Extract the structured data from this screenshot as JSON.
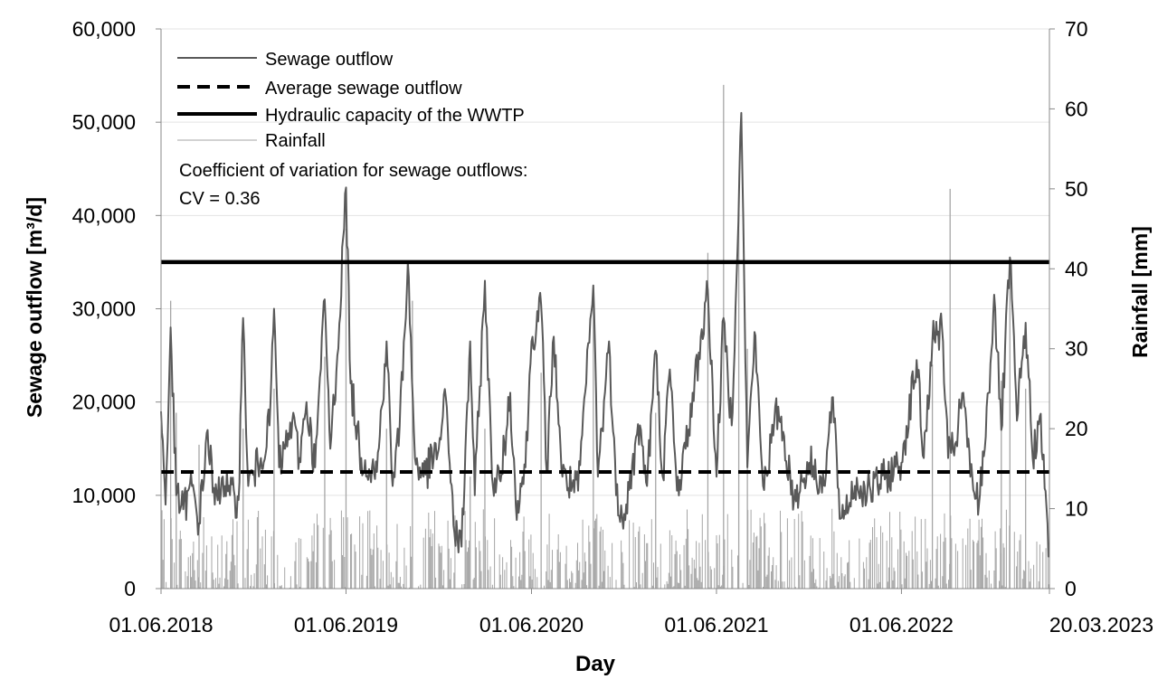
{
  "chart_data": {
    "type": "line",
    "xlabel": "Day",
    "ylabel_left": "Sewage outflow [m³/d]",
    "ylabel_right": "Rainfall [mm]",
    "x_ticks": [
      "01.06.2018",
      "01.06.2019",
      "01.06.2020",
      "01.06.2021",
      "01.06.2022",
      "20.03.2023"
    ],
    "x_range": [
      "01.06.2018",
      "20.03.2023"
    ],
    "y_left_ticks": [
      "0",
      "10,000",
      "20,000",
      "30,000",
      "40,000",
      "50,000",
      "60,000"
    ],
    "y_left_range": [
      0,
      60000
    ],
    "y_right_ticks": [
      "0",
      "10",
      "20",
      "30",
      "40",
      "50",
      "60",
      "70"
    ],
    "y_right_range": [
      0,
      70
    ],
    "legend_position": "top-left",
    "grid": "horizontal",
    "series": [
      {
        "name": "Sewage outflow",
        "axis": "left",
        "style": "solid-thin",
        "color": "#595959",
        "points": [
          [
            "01.06.2018",
            19000
          ],
          [
            "10.06.2018",
            9000
          ],
          [
            "20.06.2018",
            28000
          ],
          [
            "01.07.2018",
            10000
          ],
          [
            "15.07.2018",
            8500
          ],
          [
            "01.08.2018",
            11000
          ],
          [
            "15.08.2018",
            7000
          ],
          [
            "01.09.2018",
            17000
          ],
          [
            "15.09.2018",
            9000
          ],
          [
            "01.10.2018",
            12000
          ],
          [
            "15.10.2018",
            10000
          ],
          [
            "01.11.2018",
            9500
          ],
          [
            "10.11.2018",
            29000
          ],
          [
            "20.11.2018",
            11000
          ],
          [
            "15.12.2018",
            14000
          ],
          [
            "01.01.2019",
            17500
          ],
          [
            "10.01.2019",
            30000
          ],
          [
            "20.01.2019",
            13000
          ],
          [
            "01.02.2019",
            15000
          ],
          [
            "15.02.2019",
            18000
          ],
          [
            "01.03.2019",
            14000
          ],
          [
            "15.03.2019",
            20000
          ],
          [
            "01.04.2019",
            13000
          ],
          [
            "20.04.2019",
            31000
          ],
          [
            "01.05.2019",
            15000
          ],
          [
            "15.05.2019",
            25000
          ],
          [
            "01.06.2019",
            43000
          ],
          [
            "10.06.2019",
            22000
          ],
          [
            "01.07.2019",
            14000
          ],
          [
            "01.08.2019",
            12500
          ],
          [
            "20.08.2019",
            26500
          ],
          [
            "01.09.2019",
            11000
          ],
          [
            "15.09.2019",
            17500
          ],
          [
            "01.10.2019",
            35000
          ],
          [
            "15.10.2019",
            14000
          ],
          [
            "01.11.2019",
            12000
          ],
          [
            "01.12.2019",
            15000
          ],
          [
            "15.12.2019",
            20500
          ],
          [
            "01.01.2020",
            6000
          ],
          [
            "15.01.2020",
            4500
          ],
          [
            "01.02.2020",
            26500
          ],
          [
            "10.02.2020",
            10000
          ],
          [
            "01.03.2020",
            33000
          ],
          [
            "15.03.2020",
            12000
          ],
          [
            "01.04.2020",
            11500
          ],
          [
            "20.04.2020",
            21000
          ],
          [
            "01.05.2020",
            9000
          ],
          [
            "20.05.2020",
            13000
          ],
          [
            "01.06.2020",
            26500
          ],
          [
            "20.06.2020",
            30500
          ],
          [
            "01.07.2020",
            12500
          ],
          [
            "15.07.2020",
            27000
          ],
          [
            "01.08.2020",
            12000
          ],
          [
            "01.09.2020",
            10500
          ],
          [
            "01.10.2020",
            32500
          ],
          [
            "10.10.2020",
            12000
          ],
          [
            "01.11.2020",
            26500
          ],
          [
            "15.11.2020",
            10000
          ],
          [
            "01.12.2020",
            8000
          ],
          [
            "01.01.2021",
            17500
          ],
          [
            "15.01.2021",
            11000
          ],
          [
            "01.02.2021",
            25500
          ],
          [
            "15.02.2021",
            12000
          ],
          [
            "01.03.2021",
            23500
          ],
          [
            "15.03.2021",
            10500
          ],
          [
            "01.04.2021",
            15000
          ],
          [
            "15.05.2021",
            32000
          ],
          [
            "01.06.2021",
            12000
          ],
          [
            "15.06.2021",
            29000
          ],
          [
            "01.07.2021",
            17500
          ],
          [
            "20.07.2021",
            51000
          ],
          [
            "01.08.2021",
            13000
          ],
          [
            "15.08.2021",
            27500
          ],
          [
            "01.09.2021",
            11000
          ],
          [
            "01.10.2021",
            19500
          ],
          [
            "01.11.2021",
            9500
          ],
          [
            "01.12.2021",
            13500
          ],
          [
            "01.01.2022",
            11000
          ],
          [
            "15.01.2022",
            20500
          ],
          [
            "01.02.2022",
            7500
          ],
          [
            "01.03.2022",
            11000
          ],
          [
            "01.04.2022",
            10500
          ],
          [
            "01.05.2022",
            12000
          ],
          [
            "01.06.2022",
            13500
          ],
          [
            "01.07.2022",
            24500
          ],
          [
            "15.07.2022",
            14000
          ],
          [
            "01.08.2022",
            26500
          ],
          [
            "20.08.2022",
            28000
          ],
          [
            "01.09.2022",
            14000
          ],
          [
            "15.09.2022",
            15500
          ],
          [
            "01.10.2022",
            21000
          ],
          [
            "15.10.2022",
            12000
          ],
          [
            "01.11.2022",
            9000
          ],
          [
            "20.11.2022",
            21000
          ],
          [
            "01.12.2022",
            31500
          ],
          [
            "15.12.2022",
            17000
          ],
          [
            "01.01.2023",
            35500
          ],
          [
            "15.01.2023",
            18000
          ],
          [
            "01.02.2023",
            28500
          ],
          [
            "15.02.2023",
            14000
          ],
          [
            "01.03.2023",
            18500
          ],
          [
            "20.03.2023",
            3500
          ]
        ]
      },
      {
        "name": "Average sewage outflow",
        "axis": "left",
        "style": "dashed",
        "color": "#000000",
        "value": 12500
      },
      {
        "name": "Hydraulic capacity of the WWTP",
        "axis": "left",
        "style": "solid-thick",
        "color": "#000000",
        "value": 35000
      },
      {
        "name": "Rainfall",
        "axis": "right",
        "style": "solid-thin",
        "color": "#a6a6a6",
        "peaks": [
          [
            "20.06.2018",
            36
          ],
          [
            "01.07.2018",
            22
          ],
          [
            "15.08.2018",
            18
          ],
          [
            "10.11.2018",
            20
          ],
          [
            "10.01.2019",
            25
          ],
          [
            "20.04.2019",
            29
          ],
          [
            "01.06.2019",
            45
          ],
          [
            "20.08.2019",
            20
          ],
          [
            "10.10.2019",
            36
          ],
          [
            "01.02.2020",
            14
          ],
          [
            "01.03.2020",
            20
          ],
          [
            "20.06.2020",
            27
          ],
          [
            "01.10.2020",
            38
          ],
          [
            "01.02.2021",
            22
          ],
          [
            "15.05.2021",
            42
          ],
          [
            "15.06.2021",
            63
          ],
          [
            "15.07.2021",
            47
          ],
          [
            "01.08.2021",
            30
          ],
          [
            "01.08.2022",
            28
          ],
          [
            "05.09.2022",
            50
          ],
          [
            "15.12.2022",
            26
          ],
          [
            "01.01.2023",
            40
          ],
          [
            "01.02.2023",
            25
          ]
        ],
        "typical_daily_max": 10
      }
    ],
    "annotation": {
      "line1": "Coefficient of variation for sewage outflows:",
      "line2": "CV = 0.36"
    }
  }
}
